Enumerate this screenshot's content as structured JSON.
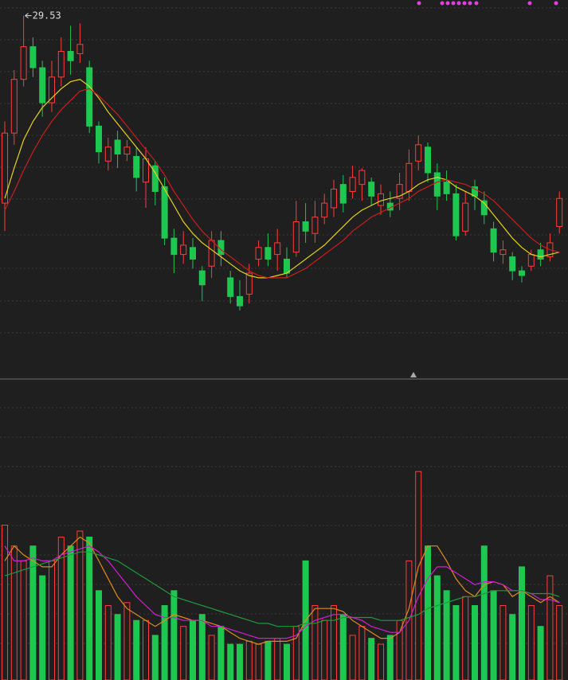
{
  "chart_data": [
    {
      "type": "candlestick",
      "up_color": "#ff3c3c",
      "down_color": "#1ec850",
      "ylim": [
        14,
        30.2
      ],
      "annotation": {
        "value": 29.53
      },
      "open": [
        21.5,
        24.5,
        26.8,
        28.2,
        27.3,
        25.8,
        26.9,
        28.0,
        27.9,
        27.3,
        24.8,
        23.3,
        24.2,
        23.6,
        23.5,
        22.4,
        23.1,
        22.2,
        20.0,
        19.3,
        19.6,
        18.6,
        18.8,
        19.9,
        18.3,
        17.5,
        17.6,
        19.1,
        19.6,
        19.3,
        19.1,
        19.4,
        20.7,
        20.2,
        20.9,
        21.3,
        22.3,
        22.0,
        22.3,
        22.4,
        21.4,
        21.5,
        21.7,
        22.0,
        23.3,
        23.9,
        22.8,
        22.4,
        21.9,
        20.3,
        22.2,
        21.6,
        20.4,
        19.3,
        19.2,
        18.6,
        18.8,
        19.5,
        19.2,
        20.5
      ],
      "high": [
        25.0,
        27.2,
        29.53,
        28.6,
        27.6,
        27.6,
        28.6,
        29.1,
        29.2,
        27.6,
        25.0,
        24.3,
        24.6,
        24.2,
        23.9,
        23.9,
        23.3,
        22.6,
        20.4,
        20.3,
        20.0,
        18.8,
        20.3,
        20.3,
        18.6,
        18.2,
        18.9,
        19.9,
        20.2,
        20.4,
        19.6,
        21.6,
        21.5,
        21.6,
        21.9,
        22.5,
        22.7,
        23.1,
        23.0,
        22.6,
        22.3,
        22.0,
        22.8,
        23.8,
        24.4,
        24.1,
        23.2,
        22.9,
        22.3,
        22.0,
        22.5,
        22.0,
        20.7,
        19.9,
        19.4,
        18.8,
        19.5,
        19.8,
        20.2,
        22.0
      ],
      "low": [
        20.3,
        24.0,
        26.5,
        26.9,
        25.2,
        25.4,
        26.5,
        27.0,
        27.5,
        24.5,
        23.2,
        22.9,
        23.0,
        23.3,
        22.0,
        21.3,
        21.4,
        19.7,
        18.5,
        18.9,
        18.7,
        17.3,
        18.3,
        18.8,
        17.2,
        16.9,
        17.2,
        18.8,
        18.8,
        18.6,
        18.3,
        19.2,
        19.8,
        19.8,
        20.6,
        20.9,
        21.1,
        21.7,
        21.6,
        21.4,
        21.0,
        20.9,
        21.2,
        21.6,
        22.9,
        22.4,
        21.2,
        21.6,
        19.9,
        20.1,
        21.2,
        20.6,
        19.0,
        18.9,
        18.2,
        18.1,
        18.6,
        18.8,
        19.0,
        20.2
      ],
      "close": [
        24.5,
        26.8,
        28.2,
        27.3,
        25.8,
        26.9,
        28.0,
        27.6,
        28.3,
        24.8,
        23.7,
        23.9,
        23.6,
        23.9,
        22.6,
        23.4,
        22.0,
        20.0,
        19.3,
        19.7,
        19.1,
        18.0,
        19.9,
        19.3,
        17.5,
        17.1,
        18.5,
        19.6,
        19.1,
        19.8,
        18.5,
        20.7,
        20.3,
        20.9,
        21.5,
        22.1,
        21.5,
        22.6,
        22.9,
        21.8,
        21.9,
        21.2,
        22.3,
        23.2,
        24.0,
        22.8,
        21.8,
        21.9,
        20.1,
        21.5,
        21.8,
        21.0,
        19.4,
        19.5,
        18.6,
        18.4,
        19.3,
        19.1,
        19.8,
        21.7
      ],
      "series": [
        {
          "color": "#e6d21e",
          "values": [
            21.7,
            23.0,
            24.2,
            25.0,
            25.6,
            26.0,
            26.4,
            26.7,
            26.8,
            26.5,
            26.0,
            25.4,
            24.9,
            24.4,
            23.9,
            23.4,
            22.8,
            22.1,
            21.4,
            20.7,
            20.2,
            19.8,
            19.5,
            19.2,
            18.9,
            18.6,
            18.4,
            18.3,
            18.3,
            18.4,
            18.5,
            18.8,
            19.1,
            19.4,
            19.7,
            20.1,
            20.5,
            20.9,
            21.2,
            21.4,
            21.6,
            21.7,
            21.8,
            22.0,
            22.3,
            22.5,
            22.6,
            22.5,
            22.2,
            22.0,
            21.8,
            21.5,
            21.0,
            20.5,
            20.0,
            19.6,
            19.3,
            19.2,
            19.3,
            19.4
          ]
        },
        {
          "color": "#c81e1e",
          "values": [
            21.2,
            22.0,
            22.9,
            23.7,
            24.4,
            25.0,
            25.5,
            25.9,
            26.3,
            26.4,
            26.1,
            25.7,
            25.3,
            24.8,
            24.3,
            23.8,
            23.3,
            22.7,
            22.0,
            21.4,
            20.8,
            20.3,
            19.9,
            19.5,
            19.2,
            18.9,
            18.6,
            18.4,
            18.3,
            18.3,
            18.3,
            18.5,
            18.7,
            19.0,
            19.3,
            19.6,
            19.9,
            20.3,
            20.6,
            20.9,
            21.1,
            21.3,
            21.5,
            21.7,
            22.0,
            22.2,
            22.4,
            22.5,
            22.4,
            22.3,
            22.1,
            21.9,
            21.6,
            21.2,
            20.8,
            20.4,
            20.0,
            19.7,
            19.5,
            19.4
          ]
        }
      ]
    },
    {
      "type": "bar",
      "ylim": [
        0,
        100
      ],
      "values": [
        52,
        45,
        40,
        45,
        35,
        40,
        48,
        45,
        50,
        48,
        30,
        25,
        22,
        26,
        20,
        20,
        15,
        25,
        30,
        18,
        20,
        22,
        15,
        18,
        12,
        12,
        13,
        12,
        13,
        14,
        12,
        18,
        40,
        25,
        20,
        25,
        22,
        15,
        18,
        14,
        12,
        15,
        20,
        40,
        70,
        45,
        35,
        30,
        25,
        28,
        25,
        45,
        30,
        25,
        22,
        38,
        25,
        18,
        35,
        25
      ],
      "series": [
        {
          "color": "#e08a1e",
          "values": [
            40,
            45,
            42,
            40,
            38,
            38,
            42,
            45,
            48,
            46,
            40,
            34,
            28,
            24,
            22,
            20,
            18,
            20,
            22,
            21,
            20,
            20,
            19,
            18,
            16,
            14,
            13,
            12,
            13,
            13,
            13,
            14,
            20,
            24,
            24,
            24,
            23,
            20,
            18,
            16,
            14,
            14,
            16,
            24,
            38,
            45,
            45,
            40,
            34,
            30,
            28,
            32,
            33,
            32,
            28,
            30,
            28,
            26,
            28,
            26
          ]
        },
        {
          "color": "#d21ed2",
          "values": [
            45,
            40,
            40,
            41,
            40,
            40,
            42,
            43,
            44,
            45,
            43,
            40,
            36,
            32,
            28,
            25,
            22,
            21,
            21,
            20,
            20,
            20,
            18,
            18,
            17,
            16,
            15,
            14,
            14,
            14,
            14,
            15,
            18,
            20,
            21,
            22,
            22,
            21,
            20,
            18,
            17,
            16,
            16,
            20,
            28,
            34,
            38,
            38,
            36,
            34,
            32,
            33,
            33,
            32,
            30,
            30,
            29,
            27,
            27,
            26
          ]
        },
        {
          "color": "#1e9a3c",
          "values": [
            35,
            36,
            37,
            38,
            39,
            40,
            41,
            42,
            43,
            43,
            42,
            41,
            40,
            38,
            36,
            34,
            32,
            30,
            28,
            27,
            26,
            25,
            24,
            23,
            22,
            21,
            20,
            19,
            19,
            18,
            18,
            18,
            19,
            19,
            20,
            20,
            21,
            21,
            21,
            21,
            20,
            20,
            20,
            21,
            22,
            24,
            25,
            26,
            27,
            28,
            28,
            29,
            30,
            30,
            30,
            30,
            29,
            29,
            29,
            28
          ]
        }
      ]
    }
  ]
}
